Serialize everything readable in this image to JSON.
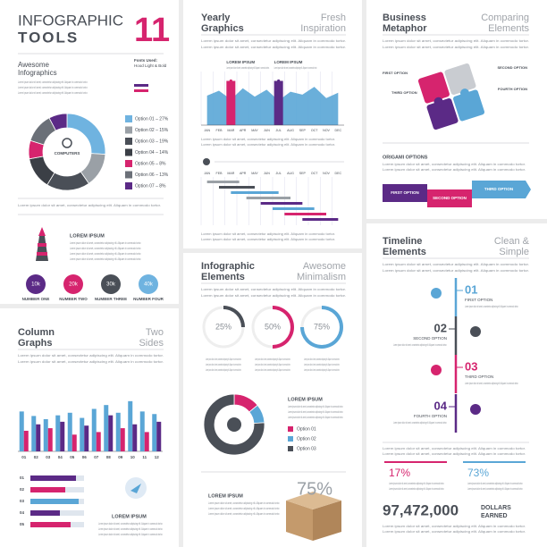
{
  "lorem": "Lorem ipsum dolor sit amet, consectetur adipiscing elit. Aliquam in commodo tortor.",
  "tools": {
    "title": "INFOGRAPHIC",
    "title_bold": "TOOLS",
    "number": "11",
    "subtitle": [
      "Awesome",
      "Infographics"
    ],
    "fonts": [
      "Fonts Used:",
      "Hood Light & Bold"
    ],
    "donut": {
      "center": "COMPUTERS",
      "series": [
        {
          "name": "Option 01 – 27%",
          "value": 27,
          "color": "#6fb3e0"
        },
        {
          "name": "Option 02 – 15%",
          "value": 15,
          "color": "#9aa0a6"
        },
        {
          "name": "Option 03 – 19%",
          "value": 19,
          "color": "#4a4f57"
        },
        {
          "name": "Option 04 – 14%",
          "value": 14,
          "color": "#3b3f46"
        },
        {
          "name": "Option 05 – 8%",
          "value": 8,
          "color": "#d6246e"
        },
        {
          "name": "Option 06 – 13%",
          "value": 13,
          "color": "#6b7078"
        },
        {
          "name": "Option 07 – 8%",
          "value": 8,
          "color": "#5b2a86"
        }
      ]
    },
    "feature": "LOREM IPSUM",
    "circles": [
      {
        "text": "10k",
        "name": "NUMBER ONE",
        "color": "#5b2a86"
      },
      {
        "text": "20k",
        "name": "NUMBER TWO",
        "color": "#d6246e"
      },
      {
        "text": "30k",
        "name": "NUMBER THREE",
        "color": "#4a4f57"
      },
      {
        "text": "40k",
        "name": "NUMBER FOUR",
        "color": "#6fb3e0"
      }
    ]
  },
  "yearly": {
    "title": [
      "Yearly",
      "Graphics"
    ],
    "subtitle": [
      "Fresh",
      "Inspiration"
    ],
    "callouts": [
      "LOREM IPSUM",
      "LOREM IPSUM"
    ],
    "months": [
      "JAN",
      "FEB",
      "MAR",
      "APR",
      "MAY",
      "JUN",
      "JUL",
      "AUG",
      "SEP",
      "OCT",
      "NOV",
      "DEC"
    ],
    "ylim": [
      0,
      100
    ],
    "series": [
      {
        "color": "#5aa6d6",
        "values": [
          60,
          70,
          52,
          75,
          58,
          72,
          50,
          68,
          62,
          78,
          55,
          66
        ]
      },
      {
        "color": "#d6246e",
        "values": [
          null,
          null,
          90,
          null,
          null,
          null,
          null,
          null,
          null,
          null,
          null,
          null
        ]
      },
      {
        "color": "#5b2a86",
        "values": [
          null,
          null,
          null,
          null,
          null,
          null,
          90,
          null,
          null,
          null,
          null,
          null
        ]
      }
    ],
    "gantt": [
      {
        "start": 0.5,
        "end": 3.2,
        "color": "#9aa0a6"
      },
      {
        "start": 1.5,
        "end": 4.5,
        "color": "#4a4f57"
      },
      {
        "start": 2.5,
        "end": 6.5,
        "color": "#5aa6d6"
      },
      {
        "start": 3.8,
        "end": 7.5,
        "color": "#9aa0a6"
      },
      {
        "start": 5,
        "end": 8.5,
        "color": "#5b2a86"
      },
      {
        "start": 6,
        "end": 9.5,
        "color": "#5aa6d6"
      },
      {
        "start": 7,
        "end": 10.5,
        "color": "#d6246e"
      },
      {
        "start": 8.5,
        "end": 11.5,
        "color": "#5b2a86"
      }
    ]
  },
  "metaphor": {
    "title": [
      "Business",
      "Metaphor"
    ],
    "subtitle": [
      "Comparing",
      "Elements"
    ],
    "puzzle": [
      {
        "label": "FIRST OPTION",
        "color": "#d6246e"
      },
      {
        "label": "SECOND OPTION",
        "color": "#c9ccd1"
      },
      {
        "label": "THIRD OPTION",
        "color": "#5b2a86"
      },
      {
        "label": "FOURTH OPTION",
        "color": "#5aa6d6"
      }
    ],
    "origami_title": "ORIGAMI OPTIONS",
    "ribbons": [
      {
        "label": "FIRST OPTION",
        "color": "#5b2a86"
      },
      {
        "label": "SECOND OPTION",
        "color": "#d6246e"
      },
      {
        "label": "THIRD OPTION",
        "color": "#5aa6d6"
      }
    ]
  },
  "columns": {
    "title": [
      "Column",
      "Graphs"
    ],
    "subtitle": [
      "Two",
      "Sides"
    ],
    "categories": [
      "01",
      "02",
      "03",
      "04",
      "05",
      "06",
      "07",
      "08",
      "09",
      "10",
      "11",
      "12"
    ],
    "ylim": [
      0,
      100
    ],
    "series": [
      {
        "color": "#5aa6d6",
        "values": [
          62,
          55,
          50,
          56,
          60,
          52,
          66,
          72,
          60,
          78,
          62,
          58
        ]
      },
      {
        "colors": [
          "#d6246e",
          "#5b2a86"
        ],
        "values": [
          32,
          42,
          36,
          46,
          26,
          40,
          30,
          56,
          36,
          42,
          30,
          46
        ]
      }
    ],
    "hbars": {
      "categories": [
        "01",
        "02",
        "03",
        "04",
        "05"
      ],
      "xlim": [
        0,
        100
      ],
      "values": [
        85,
        65,
        90,
        55,
        75
      ],
      "colors": [
        "#5b2a86",
        "#d6246e",
        "#5aa6d6",
        "#5b2a86",
        "#d6246e"
      ]
    },
    "feature": "LOREM IPSUM"
  },
  "minimal": {
    "title": [
      "Infographic",
      "Elements"
    ],
    "subtitle": [
      "Awesome",
      "Minimalism"
    ],
    "gauges": [
      {
        "value": 25,
        "label": "25%",
        "color": "#4a4f57"
      },
      {
        "value": 50,
        "label": "50%",
        "color": "#d6246e"
      },
      {
        "value": 75,
        "label": "75%",
        "color": "#5aa6d6"
      }
    ],
    "donut": {
      "title": "LOREM IPSUM",
      "series": [
        {
          "name": "Option 01",
          "value": 14,
          "color": "#d6246e"
        },
        {
          "name": "Option 02",
          "value": 10,
          "color": "#5aa6d6"
        },
        {
          "name": "Option 03",
          "value": 76,
          "color": "#4a4f57"
        }
      ]
    },
    "box": {
      "title": "LOREM IPSUM",
      "text": "75%"
    }
  },
  "timeline": {
    "title": [
      "Timeline",
      "Elements"
    ],
    "subtitle": [
      "Clean &",
      "Simple"
    ],
    "steps": [
      {
        "number": "01",
        "label": "FIRST OPTION",
        "color": "#5aa6d6"
      },
      {
        "number": "02",
        "label": "SECOND OPTION",
        "color": "#4a4f57"
      },
      {
        "number": "03",
        "label": "THIRD OPTION",
        "color": "#d6246e"
      },
      {
        "number": "04",
        "label": "FOURTH OPTION",
        "color": "#5b2a86"
      }
    ],
    "stats": [
      {
        "text": "17%",
        "color": "#d6246e"
      },
      {
        "text": "73%",
        "color": "#5aa6d6"
      }
    ],
    "total": "97,472,000",
    "total_unit": [
      "DOLLARS",
      "EARNED"
    ]
  }
}
